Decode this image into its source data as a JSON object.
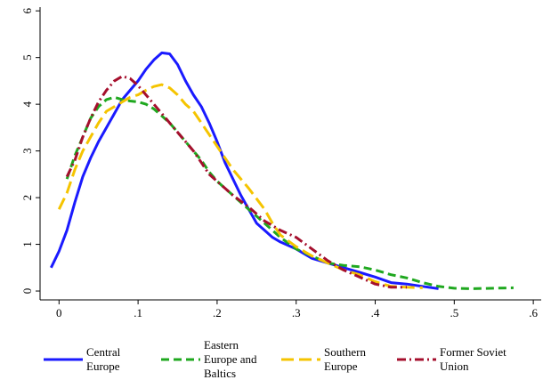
{
  "chart_data": {
    "type": "line",
    "xlim": [
      -0.024,
      0.61
    ],
    "ylim": [
      -0.19,
      6.08
    ],
    "xticks": [
      0,
      {
        "value": 0.1,
        "label": ".1"
      },
      {
        "value": 0.2,
        "label": ".2"
      },
      {
        "value": 0.3,
        "label": ".3"
      },
      {
        "value": 0.4,
        "label": ".4"
      },
      {
        "value": 0.5,
        "label": ".5"
      },
      {
        "value": 0.6,
        "label": ".6"
      }
    ],
    "yticks": [
      0,
      1,
      2,
      3,
      4,
      5,
      6
    ],
    "series": [
      {
        "name": "Central Europe",
        "color": "#1a1aff",
        "dash": "solid",
        "x": [
          -0.01,
          0,
          0.01,
          0.02,
          0.03,
          0.04,
          0.05,
          0.06,
          0.07,
          0.08,
          0.09,
          0.1,
          0.11,
          0.12,
          0.13,
          0.14,
          0.15,
          0.16,
          0.17,
          0.18,
          0.19,
          0.2,
          0.21,
          0.22,
          0.23,
          0.24,
          0.25,
          0.26,
          0.27,
          0.28,
          0.3,
          0.32,
          0.34,
          0.36,
          0.38,
          0.4,
          0.42,
          0.44,
          0.46,
          0.48
        ],
        "values": [
          0.5,
          0.85,
          1.3,
          1.9,
          2.45,
          2.85,
          3.2,
          3.5,
          3.8,
          4.1,
          4.3,
          4.5,
          4.75,
          4.95,
          5.1,
          5.08,
          4.85,
          4.5,
          4.2,
          3.95,
          3.6,
          3.2,
          2.75,
          2.4,
          2.05,
          1.75,
          1.45,
          1.3,
          1.15,
          1.05,
          0.9,
          0.7,
          0.6,
          0.5,
          0.4,
          0.3,
          0.18,
          0.15,
          0.1,
          0.05
        ]
      },
      {
        "name": "Eastern Europe and Baltics",
        "color": "#1fa81f",
        "dash": "dash",
        "x": [
          0.01,
          0.02,
          0.03,
          0.04,
          0.05,
          0.06,
          0.07,
          0.08,
          0.09,
          0.1,
          0.11,
          0.12,
          0.13,
          0.14,
          0.15,
          0.16,
          0.17,
          0.18,
          0.19,
          0.2,
          0.22,
          0.24,
          0.26,
          0.28,
          0.3,
          0.32,
          0.34,
          0.36,
          0.38,
          0.4,
          0.42,
          0.44,
          0.46,
          0.48,
          0.5,
          0.52,
          0.55,
          0.575
        ],
        "values": [
          2.4,
          2.9,
          3.3,
          3.7,
          3.95,
          4.1,
          4.15,
          4.1,
          4.07,
          4.05,
          4.0,
          3.9,
          3.75,
          3.6,
          3.4,
          3.2,
          3.0,
          2.8,
          2.55,
          2.35,
          2.05,
          1.75,
          1.45,
          1.15,
          0.9,
          0.75,
          0.6,
          0.55,
          0.52,
          0.45,
          0.35,
          0.28,
          0.18,
          0.1,
          0.06,
          0.05,
          0.06,
          0.07
        ]
      },
      {
        "name": "Southern Europe",
        "color": "#f5c400",
        "dash": "longdash",
        "x": [
          0,
          0.01,
          0.02,
          0.03,
          0.04,
          0.05,
          0.06,
          0.07,
          0.08,
          0.09,
          0.1,
          0.11,
          0.12,
          0.13,
          0.14,
          0.15,
          0.16,
          0.17,
          0.18,
          0.19,
          0.2,
          0.22,
          0.24,
          0.26,
          0.27,
          0.28,
          0.3,
          0.32,
          0.34,
          0.36,
          0.38,
          0.4,
          0.42,
          0.44,
          0.46
        ],
        "values": [
          1.75,
          2.1,
          2.6,
          3.0,
          3.3,
          3.6,
          3.85,
          3.95,
          4.05,
          4.15,
          4.2,
          4.3,
          4.38,
          4.42,
          4.35,
          4.2,
          4.0,
          3.85,
          3.6,
          3.35,
          3.1,
          2.6,
          2.2,
          1.75,
          1.45,
          1.2,
          0.95,
          0.75,
          0.6,
          0.45,
          0.35,
          0.2,
          0.1,
          0.08,
          0.07
        ]
      },
      {
        "name": "Former Soviet Union",
        "color": "#a50f2d",
        "dash": "dashdot",
        "x": [
          0.01,
          0.02,
          0.03,
          0.04,
          0.05,
          0.06,
          0.07,
          0.08,
          0.09,
          0.1,
          0.11,
          0.12,
          0.13,
          0.14,
          0.15,
          0.16,
          0.17,
          0.18,
          0.19,
          0.2,
          0.22,
          0.24,
          0.26,
          0.28,
          0.3,
          0.32,
          0.34,
          0.36,
          0.38,
          0.4,
          0.42,
          0.44
        ],
        "values": [
          2.45,
          2.8,
          3.3,
          3.7,
          4.05,
          4.3,
          4.5,
          4.6,
          4.55,
          4.4,
          4.2,
          4.0,
          3.8,
          3.6,
          3.4,
          3.2,
          3.0,
          2.75,
          2.5,
          2.35,
          2.05,
          1.8,
          1.5,
          1.3,
          1.15,
          0.9,
          0.65,
          0.45,
          0.3,
          0.15,
          0.08,
          0.08
        ]
      }
    ]
  }
}
